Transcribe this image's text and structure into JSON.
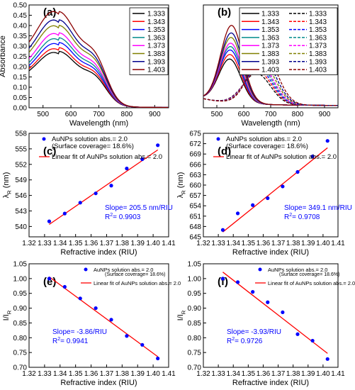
{
  "chart_data": [
    {
      "panel_label": "(a)",
      "type": "line",
      "xlabel": "Wavelength (nm)",
      "ylabel": "Absorbance",
      "xlim": [
        450,
        950
      ],
      "ylim": [
        0.0,
        0.5
      ],
      "xticks": [
        "500",
        "600",
        "700",
        "800",
        "900"
      ],
      "yticks": [
        "0.00",
        "0.05",
        "0.10",
        "0.15",
        "0.20",
        "0.25",
        "0.30",
        "0.35",
        "0.40",
        "0.45",
        "0.50"
      ],
      "legend_position": "top-right",
      "series": [
        {
          "name": "1.333",
          "color": "#000000",
          "peak": 0.262,
          "base": 0.18,
          "shoulder": 0.11
        },
        {
          "name": "1.343",
          "color": "#ff0000",
          "peak": 0.28,
          "base": 0.19,
          "shoulder": 0.12
        },
        {
          "name": "1.353",
          "color": "#0000ff",
          "peak": 0.305,
          "base": 0.205,
          "shoulder": 0.13
        },
        {
          "name": "1.363",
          "color": "#008b8b",
          "peak": 0.328,
          "base": 0.22,
          "shoulder": 0.14
        },
        {
          "name": "1.373",
          "color": "#ff00ff",
          "peak": 0.352,
          "base": 0.24,
          "shoulder": 0.15
        },
        {
          "name": "1.383",
          "color": "#808000",
          "peak": 0.388,
          "base": 0.27,
          "shoulder": 0.165
        },
        {
          "name": "1.393",
          "color": "#00008b",
          "peak": 0.415,
          "base": 0.29,
          "shoulder": 0.175
        },
        {
          "name": "1.403",
          "color": "#8b0000",
          "peak": 0.455,
          "base": 0.32,
          "shoulder": 0.19
        }
      ]
    },
    {
      "panel_label": "(b)",
      "type": "line",
      "xlabel": "Wavelength (nm)",
      "ylabel": "",
      "xlim": [
        450,
        950
      ],
      "ylim": [
        0.0,
        0.45
      ],
      "xticks": [
        "500",
        "600",
        "700",
        "800",
        "900"
      ],
      "yticks": [],
      "legend_position": "top-right",
      "series": [
        {
          "name": "1.333",
          "style": "solid",
          "color": "#000000",
          "peak": 0.19,
          "center": 548
        },
        {
          "name": "1.343",
          "style": "solid",
          "color": "#ff0000",
          "peak": 0.21,
          "center": 549
        },
        {
          "name": "1.353",
          "style": "solid",
          "color": "#0000ff",
          "peak": 0.23,
          "center": 550
        },
        {
          "name": "1.363",
          "style": "solid",
          "color": "#008b8b",
          "peak": 0.245,
          "center": 551
        },
        {
          "name": "1.373",
          "style": "solid",
          "color": "#ff00ff",
          "peak": 0.26,
          "center": 552
        },
        {
          "name": "1.383",
          "style": "solid",
          "color": "#808000",
          "peak": 0.285,
          "center": 553
        },
        {
          "name": "1.393",
          "style": "solid",
          "color": "#00008b",
          "peak": 0.305,
          "center": 554
        },
        {
          "name": "1.403",
          "style": "solid",
          "color": "#8b0000",
          "peak": 0.338,
          "center": 555
        },
        {
          "name": "1.333",
          "style": "dashed",
          "color": "#000000",
          "peak": 0.135,
          "center": 648
        },
        {
          "name": "1.343",
          "style": "dashed",
          "color": "#ff0000",
          "peak": 0.145,
          "center": 652
        },
        {
          "name": "1.353",
          "style": "dashed",
          "color": "#0000ff",
          "peak": 0.155,
          "center": 655
        },
        {
          "name": "1.363",
          "style": "dashed",
          "color": "#008b8b",
          "peak": 0.165,
          "center": 658
        },
        {
          "name": "1.373",
          "style": "dashed",
          "color": "#ff00ff",
          "peak": 0.175,
          "center": 660
        },
        {
          "name": "1.383",
          "style": "dashed",
          "color": "#808000",
          "peak": 0.19,
          "center": 664
        },
        {
          "name": "1.393",
          "style": "dashed",
          "color": "#00008b",
          "peak": 0.205,
          "center": 668
        },
        {
          "name": "1.403",
          "style": "dashed",
          "color": "#8b0000",
          "peak": 0.232,
          "center": 672
        }
      ]
    },
    {
      "panel_label": "(c)",
      "type": "scatter",
      "xlabel": "Refractive index (RIU)",
      "ylabel": "λR (nm)",
      "xlim": [
        1.32,
        1.41
      ],
      "ylim": [
        538,
        558
      ],
      "xticks": [
        "1.32",
        "1.33",
        "1.34",
        "1.35",
        "1.36",
        "1.37",
        "1.38",
        "1.39",
        "1.40",
        "1.41"
      ],
      "yticks": [
        "540",
        "543",
        "546",
        "549",
        "552",
        "555",
        "558"
      ],
      "x": [
        1.333,
        1.343,
        1.353,
        1.363,
        1.373,
        1.383,
        1.393,
        1.403
      ],
      "y": [
        541.0,
        542.5,
        544.6,
        546.4,
        547.9,
        551.2,
        553.0,
        555.7
      ],
      "fit": [
        540.4,
        554.8
      ],
      "legend": [
        "AuNPs solution abs.= 2.0",
        "(Surface coverage= 18.6%)",
        "Linear fit of AuNPs solution abs.= 2.0"
      ],
      "annotation": [
        "Slope= 205.5 nm/RIU",
        "R2= 0.9903"
      ]
    },
    {
      "panel_label": "(d)",
      "type": "scatter",
      "xlabel": "Refractive index (RIU)",
      "ylabel": "λR (nm)",
      "xlim": [
        1.32,
        1.41
      ],
      "ylim": [
        645,
        675
      ],
      "xticks": [
        "1.32",
        "1.33",
        "1.34",
        "1.35",
        "1.36",
        "1.37",
        "1.38",
        "1.39",
        "1.40",
        "1.41"
      ],
      "yticks": [
        "645",
        "648",
        "651",
        "654",
        "657",
        "660",
        "663",
        "666",
        "669",
        "672",
        "675"
      ],
      "x": [
        1.333,
        1.343,
        1.353,
        1.363,
        1.373,
        1.383,
        1.393,
        1.403
      ],
      "y": [
        647.0,
        651.8,
        654.2,
        656.2,
        659.6,
        663.8,
        668.3,
        672.8
      ],
      "fit": [
        646.4,
        670.8
      ],
      "legend": [
        "AuNPs solution abs.= 2.0",
        "(Surface coverage= 18.6%)",
        "Linear fit of AuNPs solution abs.= 2.0"
      ],
      "annotation": [
        "Slope= 349.1 nm/RIU",
        "R2= 0.9708"
      ]
    },
    {
      "panel_label": "(e)",
      "type": "scatter",
      "xlabel": "Refractive index (RIU)",
      "ylabel": "I/IR",
      "xlim": [
        1.32,
        1.41
      ],
      "ylim": [
        0.7,
        1.05
      ],
      "xticks": [
        "1.32",
        "1.33",
        "1.34",
        "1.35",
        "1.36",
        "1.37",
        "1.38",
        "1.39",
        "1.40",
        "1.41"
      ],
      "yticks": [
        "0.70",
        "0.75",
        "0.80",
        "0.85",
        "0.90",
        "0.95",
        "1.00",
        "1.05"
      ],
      "x": [
        1.333,
        1.343,
        1.353,
        1.363,
        1.373,
        1.383,
        1.393,
        1.403
      ],
      "y": [
        1.0,
        0.972,
        0.933,
        0.9,
        0.861,
        0.806,
        0.776,
        0.73
      ],
      "fit": [
        1.006,
        0.736
      ],
      "legend": [
        "AuNPs solution abs.= 2.0",
        "(Surface coverage= 18.6%)",
        "Linear fit of AuNPs solution abs.= 2.0"
      ],
      "annotation": [
        "Slope= -3.86/RIU",
        "R2= 0.9941"
      ]
    },
    {
      "panel_label": "(f)",
      "type": "scatter",
      "xlabel": "Refractive index (RIU)",
      "ylabel": "I/IR",
      "xlim": [
        1.32,
        1.41
      ],
      "ylim": [
        0.7,
        1.05
      ],
      "xticks": [
        "1.32",
        "1.33",
        "1.34",
        "1.35",
        "1.36",
        "1.37",
        "1.38",
        "1.39",
        "1.40",
        "1.41"
      ],
      "yticks": [
        "0.70",
        "0.75",
        "0.80",
        "0.85",
        "0.90",
        "0.95",
        "1.00",
        "1.05"
      ],
      "x": [
        1.333,
        1.343,
        1.353,
        1.363,
        1.373,
        1.383,
        1.393,
        1.403
      ],
      "y": [
        1.0,
        0.988,
        0.955,
        0.92,
        0.886,
        0.812,
        0.79,
        0.728
      ],
      "fit": [
        1.022,
        0.747
      ],
      "legend": [
        "AuNPs solution abs.= 2.0",
        "(Surface coverage= 18.6%)",
        "Linear fit of AuNPs solution abs.= 2.0"
      ],
      "annotation": [
        "Slope= -3.93/RIU",
        "R2= 0.9726"
      ]
    }
  ]
}
